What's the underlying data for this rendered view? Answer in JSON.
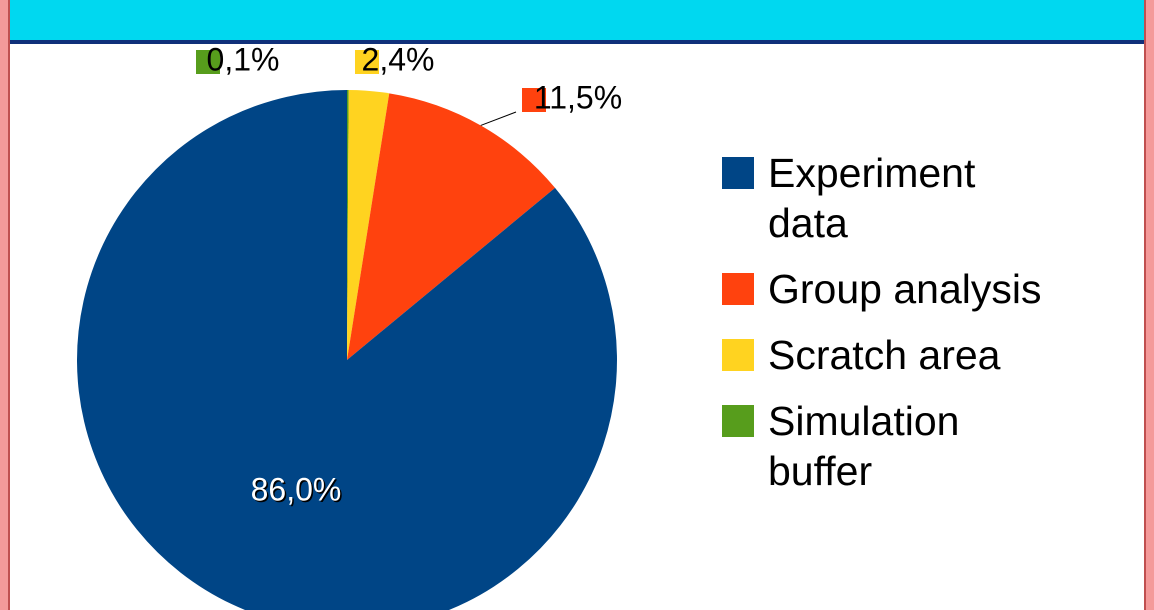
{
  "chart_data": {
    "type": "pie",
    "categories": [
      "Experiment data",
      "Group analysis",
      "Scratch area",
      "Simulation buffer"
    ],
    "values": [
      86.0,
      11.5,
      2.4,
      0.1
    ],
    "value_labels": [
      "86,0%",
      "11,5%",
      "2,4%",
      "0,1%"
    ],
    "colors": [
      "#004586",
      "#ff420e",
      "#ffd320",
      "#579d1c"
    ],
    "legend": "right"
  }
}
